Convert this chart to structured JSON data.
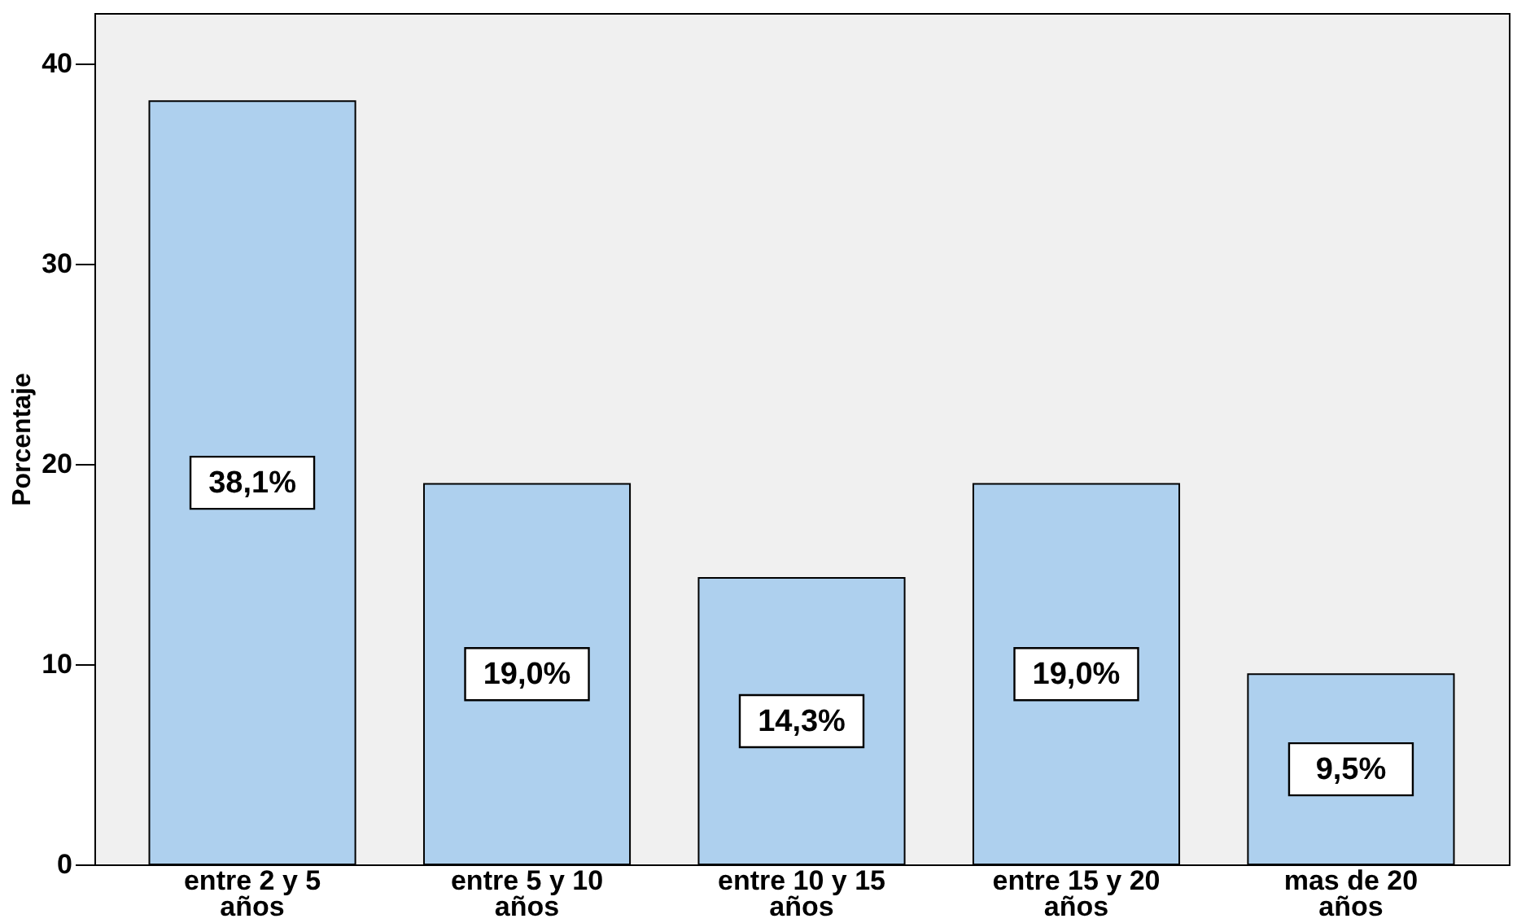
{
  "chart_data": {
    "type": "bar",
    "ylabel": "Porcentaje",
    "categories": [
      "entre 2 y 5 años",
      "entre 5 y 10 años",
      "entre 10 y 15 años",
      "entre 15 y 20 años",
      "mas de 20 años"
    ],
    "values": [
      38.1,
      19.0,
      14.3,
      19.0,
      9.5
    ],
    "value_labels": [
      "38,1%",
      "19,0%",
      "14,3%",
      "19,0%",
      "9,5%"
    ],
    "color": "#aed0ee",
    "ylim": [
      0,
      42.5
    ],
    "yticks": [
      0,
      10,
      20,
      30,
      40
    ],
    "grid": false
  }
}
